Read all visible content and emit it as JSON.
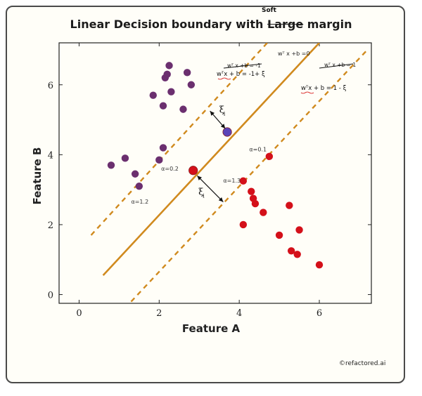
{
  "chart_data": {
    "type": "scatter",
    "title_prefix": "Linear Decision boundary with ",
    "title_struck": "Large",
    "title_suffix": " margin",
    "title_insert": "Soft",
    "xlabel": "Feature A",
    "ylabel": "Feature B",
    "xlim": [
      -0.5,
      7.3
    ],
    "ylim": [
      -0.25,
      7.2
    ],
    "xticks": [
      0,
      2,
      4,
      6
    ],
    "yticks": [
      0,
      2,
      4,
      6
    ],
    "grid": false,
    "series": [
      {
        "color": "#6b2f6f",
        "points": [
          [
            0.8,
            3.7
          ],
          [
            1.15,
            3.9
          ],
          [
            1.4,
            3.45
          ],
          [
            1.5,
            3.1
          ],
          [
            1.85,
            5.7
          ],
          [
            2.0,
            3.85
          ],
          [
            2.1,
            4.2
          ],
          [
            2.1,
            5.4
          ],
          [
            2.15,
            6.2
          ],
          [
            2.2,
            6.3
          ],
          [
            2.25,
            6.55
          ],
          [
            2.3,
            5.8
          ],
          [
            2.6,
            5.3
          ],
          [
            2.7,
            6.35
          ],
          [
            2.8,
            6.0
          ]
        ]
      },
      {
        "color": "#d4101a",
        "points": [
          [
            4.1,
            3.25
          ],
          [
            4.1,
            2.0
          ],
          [
            4.3,
            2.95
          ],
          [
            4.35,
            2.75
          ],
          [
            4.4,
            2.6
          ],
          [
            4.6,
            2.35
          ],
          [
            4.75,
            3.95
          ],
          [
            5.0,
            1.7
          ],
          [
            5.25,
            2.55
          ],
          [
            5.3,
            1.25
          ],
          [
            5.45,
            1.15
          ],
          [
            5.5,
            1.85
          ],
          [
            6.0,
            0.85
          ]
        ]
      },
      {
        "color": "#d4101a",
        "points": [
          [
            2.85,
            3.55
          ]
        ],
        "note": "support vector"
      },
      {
        "color": "#5a44b8",
        "points": [
          [
            3.7,
            4.65
          ]
        ],
        "note": "support vector"
      }
    ],
    "lines": {
      "boundary": {
        "from": [
          0.6,
          0.55
        ],
        "to": [
          6.0,
          7.2
        ],
        "style": "solid"
      },
      "upper_margin": {
        "from": [
          0.3,
          1.7
        ],
        "to": [
          4.7,
          7.2
        ],
        "style": "dashed"
      },
      "lower_margin": {
        "from": [
          1.3,
          -0.2
        ],
        "to": [
          7.2,
          7.0
        ],
        "style": "dashed"
      }
    },
    "annotations": {
      "boundary_eq": "wᵀ x +b =0",
      "upper_eq_struck": "wᵀ x +b = -1",
      "upper_eq": "wᵀx + b = -1+ ξ",
      "lower_eq_struck": "wᵀ x +b = 1",
      "lower_eq": "wᵀx + b = 1 - ξ",
      "xi": "ξ",
      "xi_sub": "i",
      "alpha_1": "α=0.1",
      "alpha_2": "α=0.2",
      "alpha_3": "α=1.3",
      "alpha_4": "α=1.2"
    },
    "colors": {
      "line": "#d08a1e",
      "purple": "#6b2f6f",
      "red": "#d4101a",
      "blue": "#5a44b8"
    }
  },
  "credit": "©refactored.ai"
}
